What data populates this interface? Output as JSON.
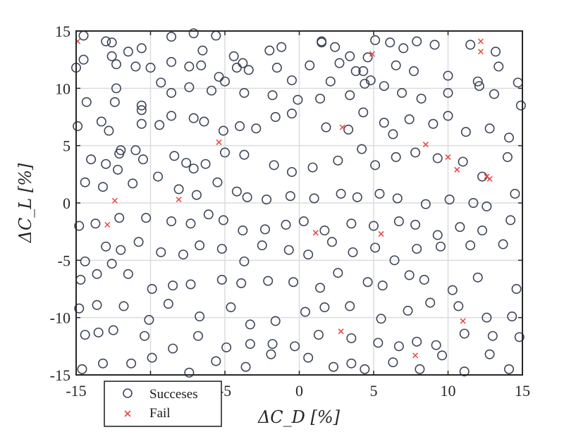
{
  "chart_data": {
    "type": "scatter",
    "title": "",
    "xlabel": "ΔC_D [%]",
    "ylabel": "ΔC_L [%]",
    "xlim": [
      -15,
      15
    ],
    "ylim": [
      -15,
      15
    ],
    "xticks": [
      -15,
      -10,
      -5,
      0,
      5,
      10,
      15
    ],
    "yticks": [
      -15,
      -10,
      -5,
      0,
      5,
      10,
      15
    ],
    "xtick_labels": [
      "-15",
      "-10",
      "-5",
      "0",
      "5",
      "10",
      "15"
    ],
    "ytick_labels": [
      "-15",
      "-10",
      "-5",
      "0",
      "5",
      "10",
      "15"
    ],
    "grid": true,
    "legend_position": "bottom-left",
    "series": [
      {
        "name": "Succeses",
        "marker": "circle",
        "color": "#3d4556",
        "points": [
          [
            -14.5,
            14.6
          ],
          [
            -13.0,
            14.1
          ],
          [
            -12.6,
            14.0
          ],
          [
            -11.5,
            13.2
          ],
          [
            -10.6,
            13.5
          ],
          [
            -10.0,
            11.8
          ],
          [
            -8.6,
            14.5
          ],
          [
            -7.1,
            14.8
          ],
          [
            -6.5,
            13.3
          ],
          [
            -5.6,
            14.6
          ],
          [
            -4.4,
            12.8
          ],
          [
            -3.8,
            12.2
          ],
          [
            -2.0,
            13.3
          ],
          [
            -1.2,
            13.6
          ],
          [
            1.5,
            14.1
          ],
          [
            1.5,
            14.0
          ],
          [
            2.4,
            13.6
          ],
          [
            3.4,
            12.8
          ],
          [
            4.6,
            12.7
          ],
          [
            5.1,
            14.2
          ],
          [
            6.1,
            14.0
          ],
          [
            7.0,
            13.5
          ],
          [
            7.9,
            14.1
          ],
          [
            9.1,
            13.8
          ],
          [
            11.5,
            13.8
          ],
          [
            13.2,
            13.2
          ],
          [
            -15.0,
            11.8
          ],
          [
            -14.5,
            12.5
          ],
          [
            -12.6,
            12.8
          ],
          [
            -12.3,
            12.1
          ],
          [
            -11.0,
            11.9
          ],
          [
            -8.6,
            12.3
          ],
          [
            -7.4,
            11.9
          ],
          [
            -6.6,
            12.0
          ],
          [
            -5.4,
            11.0
          ],
          [
            -4.2,
            11.8
          ],
          [
            -3.4,
            11.6
          ],
          [
            -1.5,
            11.8
          ],
          [
            0.7,
            12.0
          ],
          [
            2.7,
            12.2
          ],
          [
            3.8,
            11.5
          ],
          [
            4.3,
            11.5
          ],
          [
            4.8,
            10.7
          ],
          [
            6.5,
            12.0
          ],
          [
            7.7,
            11.5
          ],
          [
            10.0,
            11.1
          ],
          [
            12.0,
            10.6
          ],
          [
            13.4,
            11.9
          ],
          [
            14.7,
            10.5
          ],
          [
            -14.3,
            8.8
          ],
          [
            -12.3,
            10.0
          ],
          [
            -12.4,
            8.8
          ],
          [
            -10.6,
            8.5
          ],
          [
            -10.6,
            8.1
          ],
          [
            -9.3,
            10.5
          ],
          [
            -8.6,
            9.6
          ],
          [
            -7.4,
            10.1
          ],
          [
            -5.9,
            9.8
          ],
          [
            -5.0,
            10.6
          ],
          [
            -3.7,
            9.6
          ],
          [
            -1.8,
            9.4
          ],
          [
            -0.5,
            10.7
          ],
          [
            -0.1,
            9.0
          ],
          [
            1.4,
            9.1
          ],
          [
            2.1,
            10.6
          ],
          [
            3.4,
            9.4
          ],
          [
            4.4,
            10.4
          ],
          [
            5.7,
            10.2
          ],
          [
            6.9,
            9.6
          ],
          [
            8.2,
            9.1
          ],
          [
            10.0,
            9.6
          ],
          [
            12.1,
            10.2
          ],
          [
            13.1,
            9.5
          ],
          [
            14.9,
            8.5
          ],
          [
            -14.9,
            6.7
          ],
          [
            -13.3,
            7.1
          ],
          [
            -12.8,
            6.3
          ],
          [
            -12.1,
            4.3
          ],
          [
            -10.6,
            6.9
          ],
          [
            -9.4,
            6.8
          ],
          [
            -8.6,
            7.6
          ],
          [
            -7.1,
            7.4
          ],
          [
            -6.4,
            7.1
          ],
          [
            -5.1,
            6.3
          ],
          [
            -4.0,
            6.7
          ],
          [
            -2.9,
            6.5
          ],
          [
            -1.6,
            7.5
          ],
          [
            -0.5,
            7.8
          ],
          [
            1.8,
            6.6
          ],
          [
            3.3,
            6.4
          ],
          [
            4.3,
            7.9
          ],
          [
            5.7,
            7.0
          ],
          [
            6.3,
            6.0
          ],
          [
            7.4,
            7.3
          ],
          [
            9.0,
            6.9
          ],
          [
            10.0,
            7.6
          ],
          [
            11.2,
            6.2
          ],
          [
            12.8,
            6.5
          ],
          [
            14.1,
            5.7
          ],
          [
            -14.0,
            3.8
          ],
          [
            -13.0,
            3.4
          ],
          [
            -12.0,
            4.6
          ],
          [
            -11.0,
            4.6
          ],
          [
            -10.5,
            3.8
          ],
          [
            -8.4,
            4.1
          ],
          [
            -7.6,
            3.5
          ],
          [
            -7.1,
            3.0
          ],
          [
            -6.3,
            3.4
          ],
          [
            -5.0,
            4.4
          ],
          [
            -3.7,
            4.2
          ],
          [
            -1.7,
            3.3
          ],
          [
            -0.5,
            2.7
          ],
          [
            0.9,
            3.1
          ],
          [
            2.6,
            3.7
          ],
          [
            4.2,
            4.7
          ],
          [
            5.1,
            3.3
          ],
          [
            6.5,
            4.0
          ],
          [
            7.8,
            4.4
          ],
          [
            9.3,
            3.9
          ],
          [
            11.0,
            3.6
          ],
          [
            12.3,
            2.3
          ],
          [
            14.0,
            4.0
          ],
          [
            -14.4,
            1.8
          ],
          [
            -13.2,
            1.4
          ],
          [
            -12.2,
            2.9
          ],
          [
            -11.2,
            1.7
          ],
          [
            -9.5,
            2.3
          ],
          [
            -8.1,
            1.2
          ],
          [
            -6.9,
            0.7
          ],
          [
            -5.5,
            1.8
          ],
          [
            -4.2,
            1.0
          ],
          [
            -3.5,
            0.5
          ],
          [
            -2.2,
            0.3
          ],
          [
            -0.6,
            0.6
          ],
          [
            1.0,
            0.4
          ],
          [
            2.8,
            0.8
          ],
          [
            3.9,
            0.5
          ],
          [
            5.4,
            0.8
          ],
          [
            6.6,
            0.4
          ],
          [
            8.5,
            -0.1
          ],
          [
            10.1,
            0.3
          ],
          [
            11.7,
            0.0
          ],
          [
            12.6,
            -0.3
          ],
          [
            14.5,
            0.8
          ],
          [
            -14.8,
            -2.0
          ],
          [
            -13.7,
            -1.8
          ],
          [
            -12.1,
            -1.3
          ],
          [
            -10.3,
            -1.3
          ],
          [
            -8.6,
            -1.6
          ],
          [
            -7.3,
            -1.8
          ],
          [
            -6.1,
            -1.0
          ],
          [
            -5.1,
            -1.5
          ],
          [
            -3.8,
            -2.4
          ],
          [
            -2.3,
            -2.3
          ],
          [
            -0.9,
            -1.9
          ],
          [
            0.3,
            -1.6
          ],
          [
            1.7,
            -2.4
          ],
          [
            3.5,
            -1.8
          ],
          [
            5.0,
            -2.0
          ],
          [
            6.7,
            -1.6
          ],
          [
            7.8,
            -1.9
          ],
          [
            9.3,
            -2.8
          ],
          [
            10.8,
            -2.1
          ],
          [
            12.3,
            -2.4
          ],
          [
            14.2,
            -1.5
          ],
          [
            -14.4,
            -5.1
          ],
          [
            -13.0,
            -3.8
          ],
          [
            -12.0,
            -4.1
          ],
          [
            -10.8,
            -3.4
          ],
          [
            -9.3,
            -4.3
          ],
          [
            -7.8,
            -4.5
          ],
          [
            -6.7,
            -3.7
          ],
          [
            -5.2,
            -4.0
          ],
          [
            -3.7,
            -5.1
          ],
          [
            -2.5,
            -3.7
          ],
          [
            -0.7,
            -4.1
          ],
          [
            0.6,
            -4.5
          ],
          [
            2.2,
            -3.4
          ],
          [
            3.6,
            -4.3
          ],
          [
            5.1,
            -3.9
          ],
          [
            6.4,
            -5.0
          ],
          [
            7.9,
            -4.0
          ],
          [
            9.5,
            -3.8
          ],
          [
            11.5,
            -3.7
          ],
          [
            13.7,
            -3.6
          ],
          [
            -14.7,
            -6.7
          ],
          [
            -13.6,
            -6.2
          ],
          [
            -12.6,
            -5.3
          ],
          [
            -11.5,
            -6.2
          ],
          [
            -9.9,
            -7.5
          ],
          [
            -8.5,
            -7.2
          ],
          [
            -7.3,
            -7.1
          ],
          [
            -5.2,
            -6.7
          ],
          [
            -3.9,
            -7.0
          ],
          [
            -2.1,
            -6.8
          ],
          [
            -0.4,
            -6.9
          ],
          [
            1.4,
            -7.4
          ],
          [
            2.6,
            -6.1
          ],
          [
            4.6,
            -6.9
          ],
          [
            5.6,
            -7.2
          ],
          [
            7.4,
            -6.3
          ],
          [
            8.4,
            -6.7
          ],
          [
            10.3,
            -7.6
          ],
          [
            12.0,
            -6.5
          ],
          [
            14.6,
            -7.5
          ],
          [
            -14.8,
            -9.2
          ],
          [
            -13.6,
            -8.9
          ],
          [
            -11.8,
            -9.0
          ],
          [
            -10.1,
            -10.2
          ],
          [
            -8.8,
            -8.8
          ],
          [
            -6.7,
            -9.9
          ],
          [
            -4.6,
            -9.1
          ],
          [
            -3.3,
            -10.6
          ],
          [
            -1.6,
            -10.3
          ],
          [
            0.4,
            -9.5
          ],
          [
            1.7,
            -9.1
          ],
          [
            3.4,
            -9.0
          ],
          [
            5.5,
            -10.1
          ],
          [
            7.3,
            -9.4
          ],
          [
            8.8,
            -8.7
          ],
          [
            10.7,
            -9.0
          ],
          [
            12.6,
            -10.0
          ],
          [
            14.3,
            -9.9
          ],
          [
            -14.4,
            -11.5
          ],
          [
            -13.5,
            -11.3
          ],
          [
            -12.5,
            -11.1
          ],
          [
            -10.4,
            -11.6
          ],
          [
            -8.5,
            -12.7
          ],
          [
            -6.8,
            -11.6
          ],
          [
            -4.9,
            -12.6
          ],
          [
            -3.3,
            -12.3
          ],
          [
            -1.8,
            -12.3
          ],
          [
            -0.3,
            -12.5
          ],
          [
            1.3,
            -11.5
          ],
          [
            3.5,
            -11.8
          ],
          [
            5.3,
            -12.2
          ],
          [
            6.7,
            -12.5
          ],
          [
            7.9,
            -12.1
          ],
          [
            9.2,
            -12.4
          ],
          [
            11.1,
            -11.4
          ],
          [
            13.0,
            -11.6
          ],
          [
            14.8,
            -11.7
          ],
          [
            -14.6,
            -14.5
          ],
          [
            -13.2,
            -14.0
          ],
          [
            -11.3,
            -14.0
          ],
          [
            -9.9,
            -13.5
          ],
          [
            -7.4,
            -14.8
          ],
          [
            -5.6,
            -13.8
          ],
          [
            -3.6,
            -14.3
          ],
          [
            -1.9,
            -13.2
          ],
          [
            0.6,
            -13.5
          ],
          [
            2.3,
            -14.3
          ],
          [
            3.5,
            -14.0
          ],
          [
            4.4,
            -14.5
          ],
          [
            6.3,
            -13.9
          ],
          [
            8.1,
            -14.5
          ],
          [
            9.6,
            -13.3
          ],
          [
            11.1,
            -14.7
          ],
          [
            12.8,
            -13.2
          ],
          [
            14.1,
            -14.5
          ]
        ]
      },
      {
        "name": "Fail",
        "marker": "x",
        "color": "#e8463f",
        "points": [
          [
            -14.9,
            14.1
          ],
          [
            -12.4,
            0.2
          ],
          [
            -12.9,
            -1.9
          ],
          [
            -8.1,
            0.3
          ],
          [
            -5.4,
            5.3
          ],
          [
            1.1,
            -2.6
          ],
          [
            2.8,
            -11.2
          ],
          [
            2.9,
            6.6
          ],
          [
            4.9,
            13.0
          ],
          [
            5.5,
            -2.7
          ],
          [
            7.8,
            -13.3
          ],
          [
            8.5,
            5.1
          ],
          [
            10.0,
            4.0
          ],
          [
            10.6,
            2.9
          ],
          [
            11.0,
            -10.3
          ],
          [
            12.2,
            14.1
          ],
          [
            12.2,
            13.2
          ],
          [
            12.6,
            2.3
          ],
          [
            12.8,
            2.1
          ]
        ]
      }
    ]
  }
}
